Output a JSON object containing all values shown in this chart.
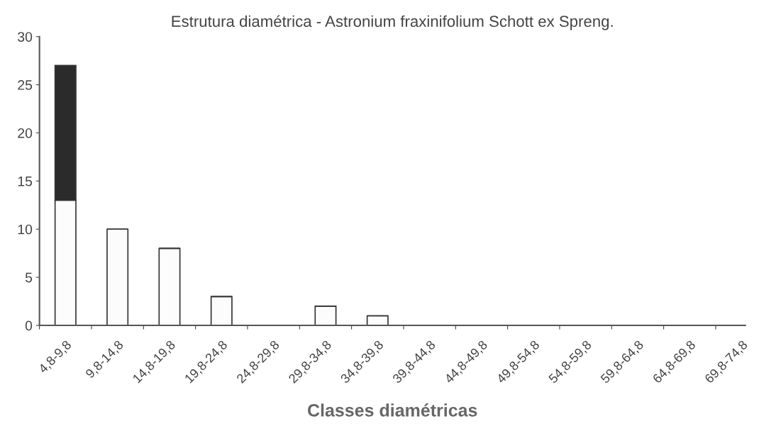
{
  "chart_data": {
    "type": "bar",
    "title": "Estrutura diamétrica - Astronium fraxinifolium Schott ex Spreng.",
    "xlabel": "Classes diamétricas",
    "categories": [
      "4,8-9,8",
      "9,8-14,8",
      "14,8-19,8",
      "19,8-24,8",
      "24,8-29,8",
      "29,8-34,8",
      "34,8-39,8",
      "39,8-44,8",
      "44,8-49,8",
      "49,8-54,8",
      "54,8-59,8",
      "59,8-64,8",
      "64,8-69,8",
      "69,8-74,8"
    ],
    "stacked": true,
    "series": [
      {
        "color": "#fcfcfc",
        "values": [
          13,
          10,
          8,
          3,
          0,
          2,
          1,
          0,
          0,
          0,
          0,
          0,
          0,
          0
        ]
      },
      {
        "color": "#2b2b2b",
        "values": [
          14,
          0,
          0,
          0,
          0,
          0,
          0,
          0,
          0,
          0,
          0,
          0,
          0,
          0
        ]
      }
    ],
    "ylim": [
      0,
      30
    ],
    "yticks": [
      0,
      5,
      10,
      15,
      20,
      25,
      30
    ],
    "grid": false,
    "legend": false
  }
}
